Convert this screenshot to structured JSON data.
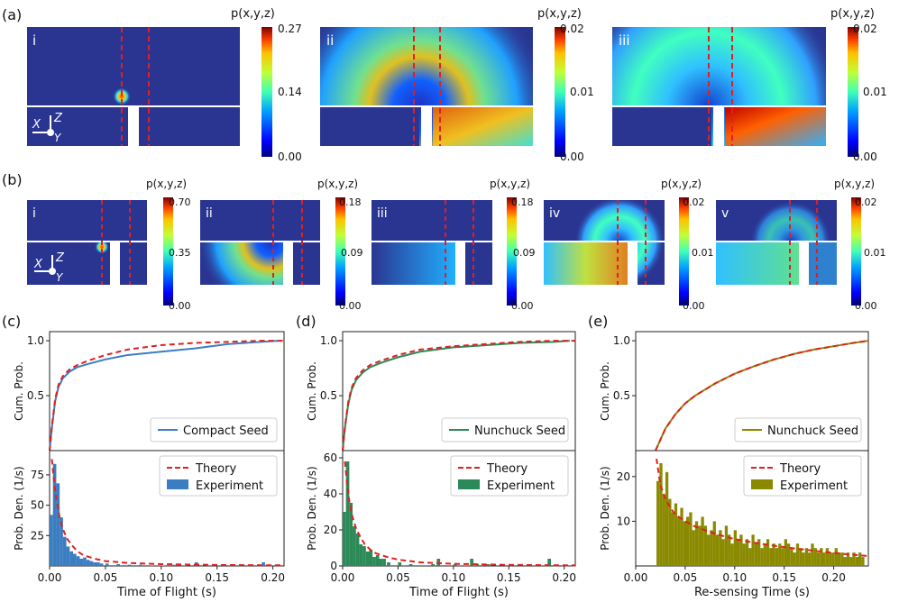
{
  "panel_labels": {
    "a": "(a)",
    "b": "(b)",
    "c": "(c)",
    "d": "(d)",
    "e": "(e)"
  },
  "cbar_title": "p(x,y,z)",
  "axes_glyph": {
    "x": "X",
    "z": "Z",
    "y": "Y"
  },
  "colors": {
    "background": "#2a3591",
    "compact": "#3b7dc1",
    "nunchuck": "#2b8a57",
    "resense": "#8a8a00",
    "theory": "#e02020",
    "cut": "#e02020",
    "wall": "#ffffff"
  },
  "heatmaps_a": [
    {
      "label": "i",
      "cbar_ticks": [
        "0.27",
        "0.14",
        "0.00"
      ],
      "theme": "blob"
    },
    {
      "label": "ii",
      "cbar_ticks": [
        "0.02",
        "0.01",
        "0.00"
      ],
      "theme": "ring"
    },
    {
      "label": "iii",
      "cbar_ticks": [
        "0.02",
        "0.01",
        "0.00"
      ],
      "theme": "ring2"
    }
  ],
  "heatmaps_b": [
    {
      "label": "i",
      "cbar_ticks": [
        "0.70",
        "0.35",
        "0.00"
      ],
      "theme": "b1"
    },
    {
      "label": "ii",
      "cbar_ticks": [
        "0.18",
        "0.09",
        "0.00"
      ],
      "theme": "b2"
    },
    {
      "label": "iii",
      "cbar_ticks": [
        "0.18",
        "0.09",
        "0.00"
      ],
      "theme": "b3"
    },
    {
      "label": "iv",
      "cbar_ticks": [
        "0.02",
        "0.01",
        "0.00"
      ],
      "theme": "b4"
    },
    {
      "label": "v",
      "cbar_ticks": [
        "0.02",
        "0.01",
        "0.00"
      ],
      "theme": "b5"
    }
  ],
  "chart_data": [
    {
      "type": "line",
      "id": "c_cdf",
      "ylabel": "Cum. Prob.",
      "yticks": [
        "1.0",
        "0.5"
      ],
      "ylim": [
        0,
        1.05
      ],
      "xlim": [
        0,
        0.21
      ],
      "series": [
        {
          "name": "Compact Seed",
          "x": [
            0,
            0.002,
            0.005,
            0.008,
            0.012,
            0.018,
            0.025,
            0.035,
            0.05,
            0.07,
            0.1,
            0.13,
            0.16,
            0.19,
            0.205
          ],
          "y": [
            0,
            0.2,
            0.45,
            0.58,
            0.66,
            0.72,
            0.76,
            0.79,
            0.83,
            0.87,
            0.9,
            0.93,
            0.97,
            0.99,
            1.0
          ]
        },
        {
          "name": "Theory",
          "style": "dashed",
          "x": [
            0,
            0.002,
            0.005,
            0.008,
            0.012,
            0.018,
            0.025,
            0.035,
            0.05,
            0.07,
            0.1,
            0.13,
            0.16,
            0.19,
            0.21
          ],
          "y": [
            0,
            0.22,
            0.47,
            0.6,
            0.68,
            0.74,
            0.78,
            0.82,
            0.87,
            0.92,
            0.96,
            0.98,
            0.99,
            1.0,
            1.0
          ]
        }
      ],
      "legend": "Compact Seed"
    },
    {
      "type": "bar",
      "id": "c_pdf",
      "xlabel": "Time of Flight (s)",
      "ylabel": "Prob. Den. (1/s)",
      "xticks": [
        "0.00",
        "0.05",
        "0.10",
        "0.15",
        "0.20"
      ],
      "xtick_values": [
        0,
        0.05,
        0.1,
        0.15,
        0.2
      ],
      "yticks": [
        "75",
        "50",
        "25"
      ],
      "ytick_values": [
        75,
        50,
        25
      ],
      "ylim": [
        0,
        92
      ],
      "xlim": [
        0,
        0.21
      ],
      "bin_width": 0.003,
      "bins": [
        0.0,
        0.003,
        0.006,
        0.009,
        0.012,
        0.015,
        0.018,
        0.021,
        0.024,
        0.027,
        0.03,
        0.033,
        0.036,
        0.039,
        0.042,
        0.045,
        0.05,
        0.06,
        0.07,
        0.08,
        0.09,
        0.1,
        0.11,
        0.12,
        0.13,
        0.14,
        0.15,
        0.17,
        0.19
      ],
      "values": [
        42,
        84,
        68,
        40,
        24,
        16,
        12,
        10,
        8,
        6,
        7,
        5,
        4,
        3,
        3,
        2,
        2,
        1.5,
        1,
        1,
        0.5,
        0.5,
        1,
        0.5,
        3,
        0.5,
        0.5,
        0.5,
        3
      ],
      "theory": {
        "x": [
          0.002,
          0.004,
          0.006,
          0.009,
          0.012,
          0.016,
          0.02,
          0.025,
          0.03,
          0.04,
          0.05,
          0.07,
          0.1,
          0.15,
          0.21
        ],
        "y": [
          88,
          70,
          55,
          40,
          30,
          22,
          17,
          12,
          9,
          6,
          4,
          2.5,
          1.5,
          0.8,
          0.5
        ]
      },
      "legend": [
        "Theory",
        "Experiment"
      ]
    },
    {
      "type": "line",
      "id": "d_cdf",
      "ylabel": "Cum. Prob.",
      "yticks": [
        "1.0",
        "0.5"
      ],
      "ylim": [
        0,
        1.05
      ],
      "xlim": [
        0,
        0.21
      ],
      "series": [
        {
          "name": "Nunchuck Seed",
          "x": [
            0,
            0.002,
            0.005,
            0.008,
            0.012,
            0.018,
            0.025,
            0.035,
            0.05,
            0.07,
            0.1,
            0.13,
            0.16,
            0.19,
            0.205
          ],
          "y": [
            0,
            0.2,
            0.42,
            0.55,
            0.64,
            0.71,
            0.76,
            0.8,
            0.85,
            0.9,
            0.94,
            0.96,
            0.98,
            0.99,
            1.0
          ]
        },
        {
          "name": "Theory",
          "style": "dashed",
          "x": [
            0,
            0.002,
            0.005,
            0.008,
            0.012,
            0.018,
            0.025,
            0.035,
            0.05,
            0.07,
            0.1,
            0.13,
            0.16,
            0.19,
            0.21
          ],
          "y": [
            0,
            0.21,
            0.44,
            0.57,
            0.66,
            0.73,
            0.78,
            0.82,
            0.87,
            0.92,
            0.95,
            0.97,
            0.99,
            1.0,
            1.0
          ]
        }
      ],
      "legend": "Nunchuck Seed"
    },
    {
      "type": "bar",
      "id": "d_pdf",
      "xlabel": "Time of Flight (s)",
      "ylabel": "Prob. Den. (1/s)",
      "xticks": [
        "0.00",
        "0.05",
        "0.10",
        "0.15",
        "0.20"
      ],
      "xtick_values": [
        0,
        0.05,
        0.1,
        0.15,
        0.2
      ],
      "yticks": [
        "60",
        "40",
        "20",
        "0"
      ],
      "ytick_values": [
        60,
        40,
        20,
        0
      ],
      "ylim": [
        0,
        62
      ],
      "xlim": [
        0,
        0.21
      ],
      "bin_width": 0.003,
      "bins": [
        0.0,
        0.003,
        0.006,
        0.009,
        0.012,
        0.015,
        0.018,
        0.021,
        0.024,
        0.027,
        0.03,
        0.033,
        0.036,
        0.04,
        0.05,
        0.06,
        0.08,
        0.085,
        0.1,
        0.115,
        0.12,
        0.13,
        0.15,
        0.185
      ],
      "values": [
        30,
        58,
        35,
        22,
        18,
        12,
        11,
        8,
        9,
        5,
        6,
        4,
        4,
        2,
        2,
        1,
        1,
        4,
        1,
        4,
        1,
        1,
        0.5,
        4
      ],
      "theory": {
        "x": [
          0.002,
          0.004,
          0.006,
          0.009,
          0.012,
          0.016,
          0.02,
          0.025,
          0.03,
          0.04,
          0.05,
          0.07,
          0.1,
          0.15,
          0.21
        ],
        "y": [
          58,
          46,
          36,
          27,
          21,
          16,
          12,
          9,
          7,
          5,
          3.5,
          2,
          1.2,
          0.6,
          0.3
        ]
      },
      "legend": [
        "Theory",
        "Experiment"
      ]
    },
    {
      "type": "line",
      "id": "e_cdf",
      "ylabel": "Cum. Prob.",
      "yticks": [
        "1.0",
        "0.5"
      ],
      "ylim": [
        0,
        1.05
      ],
      "xlim": [
        0,
        0.235
      ],
      "series": [
        {
          "name": "Nunchuck Seed",
          "x": [
            0.02,
            0.025,
            0.03,
            0.04,
            0.05,
            0.06,
            0.08,
            0.1,
            0.12,
            0.14,
            0.16,
            0.18,
            0.2,
            0.22,
            0.235
          ],
          "y": [
            0,
            0.1,
            0.2,
            0.33,
            0.43,
            0.5,
            0.61,
            0.7,
            0.77,
            0.83,
            0.88,
            0.92,
            0.95,
            0.98,
            1.0
          ]
        },
        {
          "name": "Theory",
          "style": "dashed",
          "x": [
            0.02,
            0.025,
            0.03,
            0.04,
            0.05,
            0.06,
            0.08,
            0.1,
            0.12,
            0.14,
            0.16,
            0.18,
            0.2,
            0.22,
            0.235
          ],
          "y": [
            0,
            0.1,
            0.2,
            0.33,
            0.43,
            0.5,
            0.61,
            0.7,
            0.77,
            0.83,
            0.88,
            0.92,
            0.95,
            0.98,
            1.0
          ]
        }
      ],
      "legend": "Nunchuck Seed"
    },
    {
      "type": "bar",
      "id": "e_pdf",
      "xlabel": "Re-sensing Time (s)",
      "ylabel": "Prob. Den. (1/s)",
      "xticks": [
        "0.00",
        "0.05",
        "0.10",
        "0.15",
        "0.20"
      ],
      "xtick_values": [
        0,
        0.05,
        0.1,
        0.15,
        0.2
      ],
      "yticks": [
        "20",
        "10"
      ],
      "ytick_values": [
        20,
        10
      ],
      "ylim": [
        0,
        25
      ],
      "xlim": [
        0,
        0.235
      ],
      "bin_width": 0.003,
      "bins": [
        0.021,
        0.024,
        0.027,
        0.03,
        0.033,
        0.036,
        0.039,
        0.042,
        0.045,
        0.048,
        0.051,
        0.054,
        0.057,
        0.06,
        0.063,
        0.066,
        0.069,
        0.072,
        0.075,
        0.078,
        0.081,
        0.084,
        0.087,
        0.09,
        0.093,
        0.096,
        0.099,
        0.102,
        0.105,
        0.108,
        0.111,
        0.114,
        0.117,
        0.12,
        0.123,
        0.126,
        0.129,
        0.132,
        0.135,
        0.138,
        0.141,
        0.144,
        0.147,
        0.15,
        0.153,
        0.156,
        0.159,
        0.162,
        0.165,
        0.168,
        0.171,
        0.174,
        0.177,
        0.18,
        0.183,
        0.186,
        0.189,
        0.192,
        0.195,
        0.198,
        0.201,
        0.204,
        0.207,
        0.21,
        0.213,
        0.216,
        0.219,
        0.222,
        0.225,
        0.228
      ],
      "values": [
        19,
        23,
        16,
        21,
        15,
        12,
        14,
        11,
        13,
        10,
        11,
        12,
        8,
        10,
        9,
        11,
        9,
        7,
        8,
        10,
        7,
        8,
        6,
        9,
        7,
        5,
        8,
        6,
        7,
        5,
        6,
        4,
        7,
        5,
        6,
        4,
        5,
        6,
        4,
        5,
        4,
        5,
        4,
        6,
        5,
        4,
        3,
        5,
        4,
        3,
        4,
        3,
        5,
        4,
        3,
        4,
        3,
        4,
        3,
        3,
        4,
        3,
        3,
        2,
        3,
        2,
        3,
        2,
        3,
        2
      ],
      "theory": {
        "x": [
          0.021,
          0.025,
          0.03,
          0.035,
          0.04,
          0.05,
          0.06,
          0.08,
          0.1,
          0.12,
          0.15,
          0.18,
          0.21,
          0.235
        ],
        "y": [
          24,
          18,
          15,
          13,
          11.5,
          10,
          8.8,
          7.2,
          6,
          5.2,
          4.2,
          3.4,
          2.7,
          2.2
        ]
      },
      "legend": [
        "Theory",
        "Experiment"
      ]
    }
  ]
}
